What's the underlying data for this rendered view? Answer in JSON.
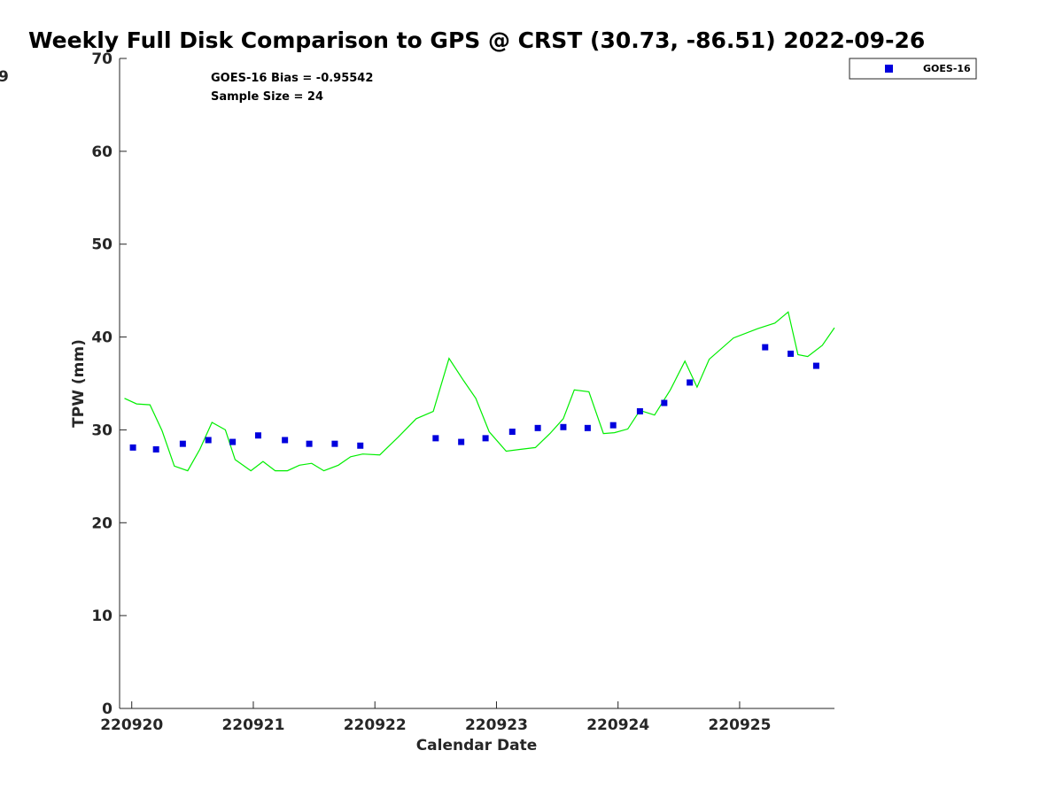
{
  "chart_data": {
    "type": "scatter",
    "title": "Weekly Full Disk Comparison to GPS @ CRST (30.73, -86.51) 2022-09-26",
    "xlabel": "Calendar Date",
    "ylabel": "TPW (mm)",
    "ylim": [
      0,
      70
    ],
    "yticks": [
      0,
      10,
      20,
      30,
      40,
      50,
      60,
      70
    ],
    "xlim": [
      -0.1,
      5.78
    ],
    "xticks": [
      {
        "pos": 0,
        "label": "220920"
      },
      {
        "pos": 1,
        "label": "220921"
      },
      {
        "pos": 2,
        "label": "220922"
      },
      {
        "pos": 3,
        "label": "220923"
      },
      {
        "pos": 4,
        "label": "220924"
      },
      {
        "pos": 5,
        "label": "220925"
      }
    ],
    "clipped_left_label": "9",
    "annotations": [
      "GOES-16 Bias = -0.95542",
      "Sample Size = 24"
    ],
    "legend": {
      "position": "top-right",
      "entries": [
        "GOES-16"
      ]
    },
    "grid": false,
    "series": [
      {
        "name": "GOES-16",
        "kind": "scatter",
        "color": "#0000dd",
        "x": [
          0.01,
          0.2,
          0.42,
          0.63,
          0.83,
          1.04,
          1.26,
          1.46,
          1.67,
          1.88,
          2.5,
          2.71,
          2.91,
          3.13,
          3.34,
          3.55,
          3.75,
          3.96,
          4.18,
          4.38,
          4.59,
          5.21,
          5.42,
          5.63
        ],
        "y": [
          28.1,
          27.9,
          28.5,
          28.9,
          28.7,
          29.4,
          28.9,
          28.5,
          28.5,
          28.3,
          29.1,
          28.7,
          29.1,
          29.8,
          30.2,
          30.3,
          30.2,
          30.5,
          32.0,
          32.9,
          35.1,
          38.9,
          38.2,
          36.9
        ]
      },
      {
        "kind": "line",
        "color": "#00ee00",
        "x": [
          -0.06,
          0.04,
          0.15,
          0.25,
          0.35,
          0.46,
          0.56,
          0.66,
          0.77,
          0.85,
          0.98,
          1.08,
          1.18,
          1.28,
          1.38,
          1.48,
          1.58,
          1.7,
          1.8,
          1.9,
          2.04,
          2.19,
          2.34,
          2.48,
          2.61,
          2.73,
          2.83,
          2.94,
          3.08,
          3.2,
          3.32,
          3.44,
          3.55,
          3.64,
          3.76,
          3.88,
          3.97,
          4.08,
          4.18,
          4.3,
          4.43,
          4.55,
          4.65,
          4.75,
          4.95,
          5.15,
          5.29,
          5.4,
          5.48,
          5.56,
          5.68,
          5.78
        ],
        "y": [
          33.4,
          32.8,
          32.7,
          29.9,
          26.1,
          25.6,
          27.9,
          30.8,
          30.0,
          26.8,
          25.6,
          26.6,
          25.6,
          25.6,
          26.2,
          26.4,
          25.6,
          26.2,
          27.1,
          27.4,
          27.3,
          29.2,
          31.2,
          32.0,
          37.7,
          35.3,
          33.4,
          29.8,
          27.7,
          27.9,
          28.1,
          29.6,
          31.2,
          34.3,
          34.1,
          29.6,
          29.7,
          30.1,
          32.1,
          31.6,
          34.3,
          37.4,
          34.6,
          37.6,
          39.9,
          40.9,
          41.5,
          42.7,
          38.1,
          37.9,
          39.1,
          41.0
        ]
      }
    ]
  }
}
